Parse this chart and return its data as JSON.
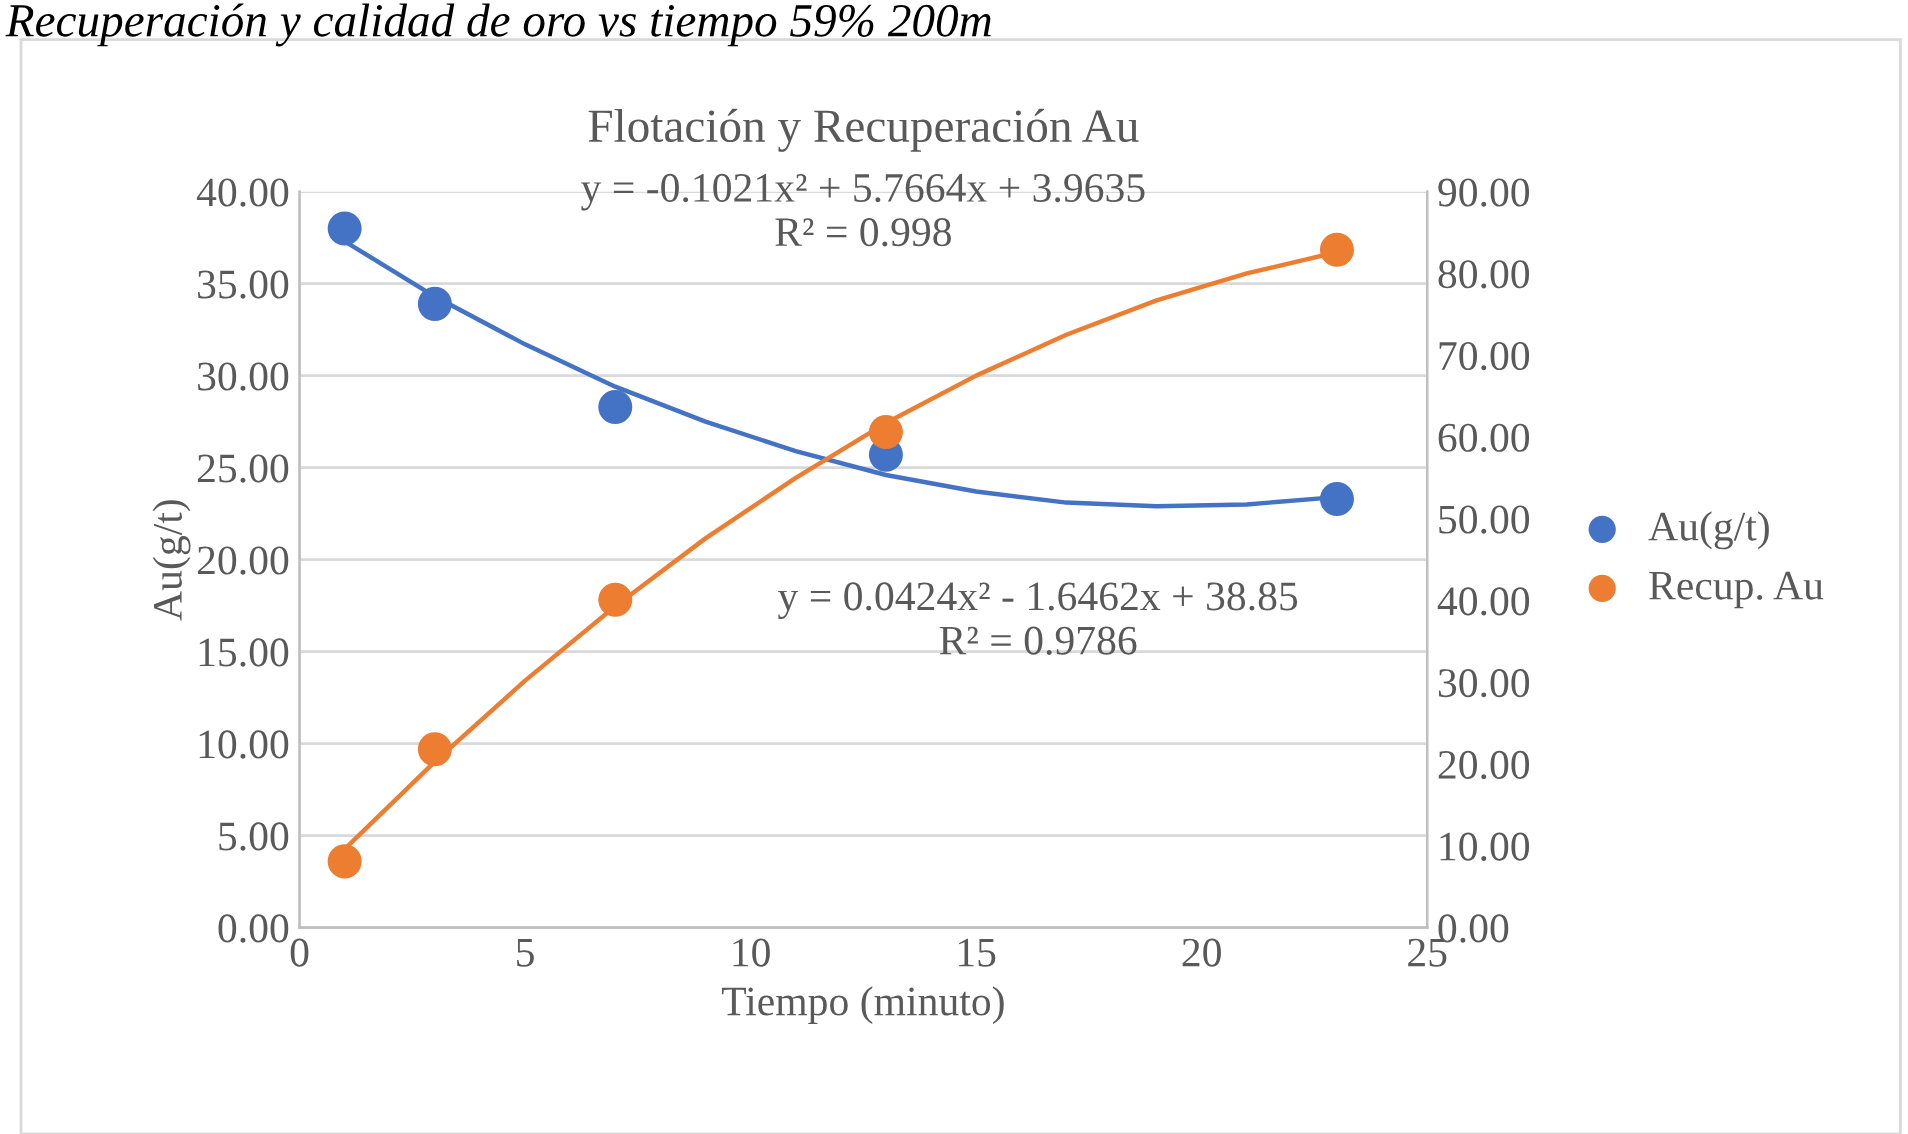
{
  "chart_data": {
    "type": "scatter",
    "title": "Flotación y Recuperación Au",
    "xlabel": "Tiempo (minuto)",
    "ylabel": "Au(g/t)",
    "annotations": [
      "Recuperación y calidad de oro vs tiempo 59% 200m",
      "y = -0.1021x² + 5.7664x + 3.9635",
      "R² = 0.998",
      "y = 0.0424x² - 1.6462x + 38.85",
      "R² = 0.9786"
    ],
    "x": [
      1,
      3,
      7,
      13,
      23
    ],
    "series": [
      {
        "name": "Au(g/t)",
        "color": "#4472c4",
        "values": [
          38.0,
          33.9,
          28.3,
          25.7,
          23.3
        ],
        "marker": "circle"
      },
      {
        "name": "Recup. Au",
        "color": "#ed7d31",
        "axis": "y2",
        "values": [
          8.1,
          21.8,
          40.1,
          60.6,
          82.9
        ],
        "marker": "circle"
      },
      {
        "type": "line",
        "color": "#4472c4",
        "x": [
          1,
          3,
          5,
          7,
          9,
          11,
          13,
          15,
          17,
          19,
          21,
          23
        ],
        "values": [
          37.3,
          34.3,
          31.7,
          29.4,
          27.5,
          25.9,
          24.6,
          23.7,
          23.1,
          22.9,
          23.0,
          23.4
        ],
        "marker": "none"
      },
      {
        "type": "line",
        "color": "#ed7d31",
        "axis": "y2",
        "x": [
          1,
          3,
          5,
          7,
          9,
          11,
          13,
          15,
          17,
          19,
          21,
          23
        ],
        "values": [
          9.6,
          20.3,
          30.2,
          39.3,
          47.6,
          55.0,
          61.7,
          67.5,
          72.5,
          76.7,
          80.0,
          82.6
        ],
        "marker": "none"
      }
    ],
    "xlim": [
      0,
      25
    ],
    "xticks": [
      0,
      5,
      10,
      15,
      20,
      25
    ],
    "ylim": [
      0,
      40
    ],
    "yticks": [
      {
        "value": 0,
        "label": "0.00"
      },
      {
        "value": 5,
        "label": "5.00"
      },
      {
        "value": 10,
        "label": "10.00"
      },
      {
        "value": 15,
        "label": "15.00"
      },
      {
        "value": 20,
        "label": "20.00"
      },
      {
        "value": 25,
        "label": "25.00"
      },
      {
        "value": 30,
        "label": "30.00"
      },
      {
        "value": 35,
        "label": "35.00"
      },
      {
        "value": 40,
        "label": "40.00"
      }
    ],
    "y2lim": [
      0,
      90
    ],
    "y2ticks": [
      {
        "value": 0,
        "label": "0.00"
      },
      {
        "value": 10,
        "label": "10.00"
      },
      {
        "value": 20,
        "label": "20.00"
      },
      {
        "value": 30,
        "label": "30.00"
      },
      {
        "value": 40,
        "label": "40.00"
      },
      {
        "value": 50,
        "label": "50.00"
      },
      {
        "value": 60,
        "label": "60.00"
      },
      {
        "value": 70,
        "label": "70.00"
      },
      {
        "value": 80,
        "label": "80.00"
      },
      {
        "value": 90,
        "label": "90.00"
      }
    ],
    "grid": "y",
    "legend": "right"
  }
}
